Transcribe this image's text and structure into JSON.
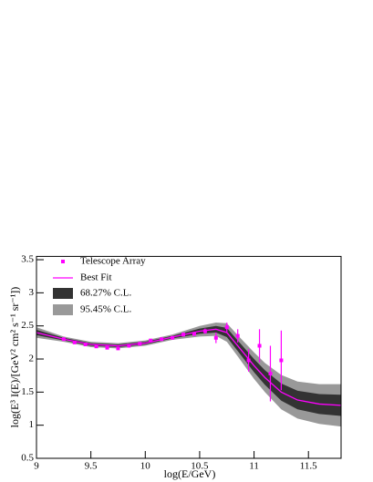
{
  "chart_data": {
    "type": "scatter",
    "xlabel": "log(E/GeV)",
    "ylabel": "log(E³ I(E)/[GeV² cm² s⁻¹ sr⁻¹])",
    "xlim": [
      9,
      11.8
    ],
    "ylim": [
      0.5,
      3.55
    ],
    "xticks": [
      9,
      9.5,
      10,
      10.5,
      11,
      11.5
    ],
    "yticks": [
      0.5,
      1,
      1.5,
      2,
      2.5,
      3,
      3.5
    ],
    "legend": "top-left",
    "series": [
      {
        "name": "Telescope Array",
        "color": "#ff00ff",
        "x": [
          9.25,
          9.35,
          9.45,
          9.55,
          9.65,
          9.75,
          9.85,
          9.95,
          10.05,
          10.15,
          10.25,
          10.35,
          10.45,
          10.55,
          10.65,
          10.75,
          10.85,
          10.95,
          11.05,
          11.15,
          11.25
        ],
        "values": [
          2.3,
          2.25,
          2.22,
          2.19,
          2.17,
          2.16,
          2.2,
          2.23,
          2.28,
          2.3,
          2.32,
          2.37,
          2.38,
          2.42,
          2.32,
          2.48,
          2.35,
          1.98,
          2.2,
          1.78,
          1.98
        ],
        "errors": [
          0.02,
          0.02,
          0.02,
          0.02,
          0.02,
          0.02,
          0.02,
          0.02,
          0.02,
          0.02,
          0.02,
          0.03,
          0.03,
          0.04,
          0.08,
          0.07,
          0.1,
          0.17,
          0.25,
          0.42,
          0.45
        ]
      }
    ],
    "fit": {
      "name": "Best Fit",
      "color": "#ff00ff",
      "x": [
        9,
        9.25,
        9.5,
        9.75,
        10,
        10.25,
        10.5,
        10.65,
        10.75,
        10.85,
        11,
        11.1,
        11.25,
        11.4,
        11.6,
        11.8
      ],
      "values": [
        2.4,
        2.3,
        2.22,
        2.2,
        2.24,
        2.33,
        2.42,
        2.45,
        2.4,
        2.2,
        1.9,
        1.72,
        1.5,
        1.38,
        1.32,
        1.3
      ]
    },
    "bands": [
      {
        "name": "95.45% C.L.",
        "color": "#999999",
        "upper": [
          2.48,
          2.34,
          2.26,
          2.24,
          2.28,
          2.37,
          2.5,
          2.55,
          2.54,
          2.36,
          2.1,
          1.94,
          1.76,
          1.66,
          1.62,
          1.62
        ],
        "lower": [
          2.32,
          2.26,
          2.18,
          2.16,
          2.2,
          2.29,
          2.34,
          2.35,
          2.26,
          2.04,
          1.7,
          1.5,
          1.24,
          1.1,
          1.02,
          0.98
        ]
      },
      {
        "name": "68.27% C.L.",
        "color": "#333333",
        "upper": [
          2.44,
          2.32,
          2.24,
          2.22,
          2.26,
          2.35,
          2.46,
          2.5,
          2.47,
          2.28,
          2.0,
          1.83,
          1.63,
          1.52,
          1.47,
          1.46
        ],
        "lower": [
          2.36,
          2.28,
          2.2,
          2.18,
          2.22,
          2.31,
          2.38,
          2.4,
          2.33,
          2.12,
          1.8,
          1.61,
          1.37,
          1.24,
          1.17,
          1.14
        ]
      }
    ]
  }
}
